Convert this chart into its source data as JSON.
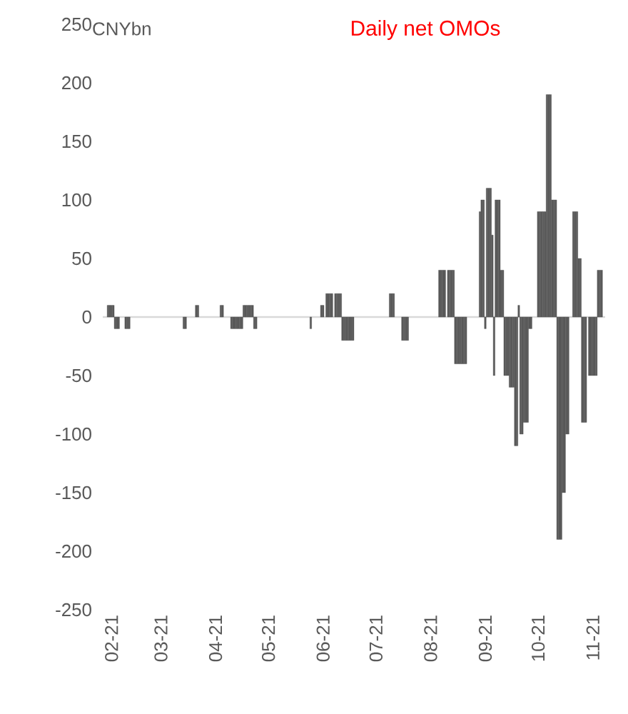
{
  "chart_data": {
    "type": "bar",
    "title": "Daily net OMOs",
    "ylabel": "CNYbn",
    "color": "#595959",
    "x": [
      "2021-01-30",
      "2021-01-31",
      "2021-02-01",
      "2021-02-02",
      "2021-02-03",
      "2021-02-04",
      "2021-02-05",
      "2021-02-09",
      "2021-02-10",
      "2021-02-11",
      "2021-03-14",
      "2021-03-15",
      "2021-03-21",
      "2021-03-22",
      "2021-04-04",
      "2021-04-05",
      "2021-04-10",
      "2021-04-11",
      "2021-04-12",
      "2021-04-13",
      "2021-04-14",
      "2021-04-15",
      "2021-04-16",
      "2021-04-17",
      "2021-04-18",
      "2021-04-19",
      "2021-04-20",
      "2021-04-21",
      "2021-04-22",
      "2021-04-23",
      "2021-04-24",
      "2021-05-25",
      "2021-05-31",
      "2021-06-01",
      "2021-06-03",
      "2021-06-04",
      "2021-06-05",
      "2021-06-06",
      "2021-06-08",
      "2021-06-09",
      "2021-06-10",
      "2021-06-11",
      "2021-06-12",
      "2021-06-13",
      "2021-06-14",
      "2021-06-15",
      "2021-06-16",
      "2021-06-17",
      "2021-06-18",
      "2021-07-09",
      "2021-07-10",
      "2021-07-11",
      "2021-07-16",
      "2021-07-17",
      "2021-07-18",
      "2021-07-19",
      "2021-08-06",
      "2021-08-07",
      "2021-08-08",
      "2021-08-09",
      "2021-08-11",
      "2021-08-12",
      "2021-08-13",
      "2021-08-14",
      "2021-08-15",
      "2021-08-16",
      "2021-08-17",
      "2021-08-18",
      "2021-08-19",
      "2021-08-20",
      "2021-08-21",
      "2021-08-29",
      "2021-08-30",
      "2021-08-31",
      "2021-09-01",
      "2021-09-02",
      "2021-09-03",
      "2021-09-04",
      "2021-09-05",
      "2021-09-06",
      "2021-09-07",
      "2021-09-08",
      "2021-09-09",
      "2021-09-10",
      "2021-09-11",
      "2021-09-12",
      "2021-09-13",
      "2021-09-14",
      "2021-09-15",
      "2021-09-16",
      "2021-09-17",
      "2021-09-18",
      "2021-09-19",
      "2021-09-20",
      "2021-09-21",
      "2021-09-22",
      "2021-09-23",
      "2021-09-24",
      "2021-09-25",
      "2021-09-26",
      "2021-09-27",
      "2021-10-01",
      "2021-10-02",
      "2021-10-03",
      "2021-10-04",
      "2021-10-05",
      "2021-10-06",
      "2021-10-07",
      "2021-10-08",
      "2021-10-09",
      "2021-10-10",
      "2021-10-11",
      "2021-10-12",
      "2021-10-13",
      "2021-10-14",
      "2021-10-15",
      "2021-10-16",
      "2021-10-17",
      "2021-10-18",
      "2021-10-21",
      "2021-10-22",
      "2021-10-23",
      "2021-10-24",
      "2021-10-25",
      "2021-10-26",
      "2021-10-27",
      "2021-10-28",
      "2021-10-30",
      "2021-10-31",
      "2021-11-01",
      "2021-11-02",
      "2021-11-03",
      "2021-11-04",
      "2021-11-05",
      "2021-11-06"
    ],
    "values": [
      10,
      10,
      10,
      10,
      -10,
      -10,
      -10,
      -10,
      -10,
      -10,
      -10,
      -10,
      10,
      10,
      10,
      10,
      -10,
      -10,
      -10,
      -10,
      -10,
      -10,
      -10,
      10,
      10,
      10,
      10,
      10,
      10,
      -10,
      -10,
      -10,
      10,
      10,
      20,
      20,
      20,
      20,
      20,
      20,
      20,
      20,
      -20,
      -20,
      -20,
      -20,
      -20,
      -20,
      -20,
      20,
      20,
      20,
      -20,
      -20,
      -20,
      -20,
      40,
      40,
      40,
      40,
      40,
      40,
      40,
      40,
      -40,
      -40,
      -40,
      -40,
      -40,
      -40,
      -40,
      90,
      100,
      100,
      -10,
      110,
      110,
      110,
      70,
      -50,
      100,
      100,
      100,
      40,
      40,
      -50,
      -50,
      -50,
      -60,
      -60,
      -60,
      -110,
      -110,
      10,
      -100,
      -100,
      -90,
      -90,
      -90,
      -10,
      -10,
      90,
      90,
      90,
      90,
      90,
      190,
      190,
      190,
      100,
      100,
      100,
      -190,
      -190,
      -190,
      -150,
      -150,
      -100,
      -100,
      90,
      90,
      90,
      50,
      50,
      -90,
      -90,
      -90,
      -50,
      -50,
      -50,
      -50,
      -50,
      40,
      40,
      40
    ],
    "xlim": [
      "2021-01-27",
      "2021-11-08"
    ],
    "xticks": [
      {
        "value": "2021-02-01",
        "label": "02-21"
      },
      {
        "value": "2021-03-01",
        "label": "03-21"
      },
      {
        "value": "2021-04-01",
        "label": "04-21"
      },
      {
        "value": "2021-05-01",
        "label": "05-21"
      },
      {
        "value": "2021-06-01",
        "label": "06-21"
      },
      {
        "value": "2021-07-01",
        "label": "07-21"
      },
      {
        "value": "2021-08-01",
        "label": "08-21"
      },
      {
        "value": "2021-09-01",
        "label": "09-21"
      },
      {
        "value": "2021-10-01",
        "label": "10-21"
      },
      {
        "value": "2021-11-01",
        "label": "11-21"
      }
    ],
    "ylim": [
      -250,
      250
    ],
    "yticks": [
      -250,
      -200,
      -150,
      -100,
      -50,
      0,
      50,
      100,
      150,
      200,
      250
    ]
  }
}
